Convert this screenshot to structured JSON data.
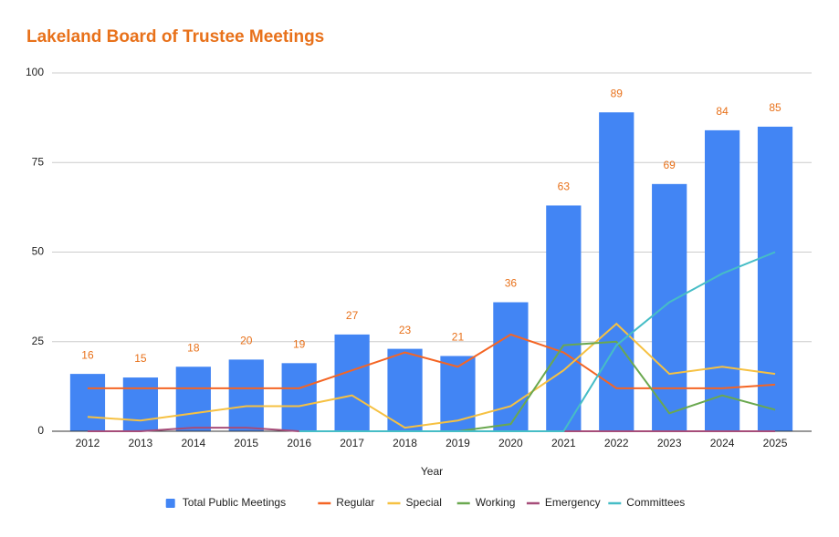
{
  "chart_data": {
    "type": "combo",
    "title": "Lakeland Board of Trustee Meetings",
    "x_label": "Year",
    "categories": [
      "2012",
      "2013",
      "2014",
      "2015",
      "2016",
      "2017",
      "2018",
      "2019",
      "2020",
      "2021",
      "2022",
      "2023",
      "2024",
      "2025"
    ],
    "series": [
      {
        "name": "Total Public Meetings",
        "type": "bar",
        "color": "#4285f4",
        "values": [
          16,
          15,
          18,
          20,
          19,
          27,
          23,
          21,
          36,
          63,
          89,
          69,
          84,
          85
        ]
      },
      {
        "name": "Regular",
        "type": "line",
        "color": "#f46524",
        "values": [
          12,
          12,
          12,
          12,
          12,
          17,
          22,
          18,
          27,
          22,
          12,
          12,
          12,
          13
        ]
      },
      {
        "name": "Special",
        "type": "line",
        "color": "#f6c142",
        "values": [
          4,
          3,
          5,
          7,
          7,
          10,
          1,
          3,
          7,
          17,
          30,
          16,
          18,
          16
        ]
      },
      {
        "name": "Working",
        "type": "line",
        "color": "#6aa84f",
        "values": [
          null,
          null,
          null,
          null,
          null,
          null,
          null,
          0,
          2,
          24,
          25,
          5,
          10,
          6
        ]
      },
      {
        "name": "Emergency",
        "type": "line",
        "color": "#a64d79",
        "values": [
          0,
          0,
          1,
          1,
          0,
          0,
          0,
          0,
          0,
          0,
          0,
          0,
          0,
          0
        ]
      },
      {
        "name": "Committees",
        "type": "line",
        "color": "#46bdc6",
        "values": [
          null,
          null,
          null,
          null,
          0,
          0,
          0,
          0,
          0,
          0,
          24,
          36,
          44,
          50
        ]
      }
    ],
    "data_label_color": "#e8711a",
    "title_color": "#e8711a",
    "ylim": [
      0,
      100
    ],
    "yticks": [
      0,
      25,
      50,
      75,
      100
    ],
    "grid": true,
    "legend": "bottom"
  }
}
